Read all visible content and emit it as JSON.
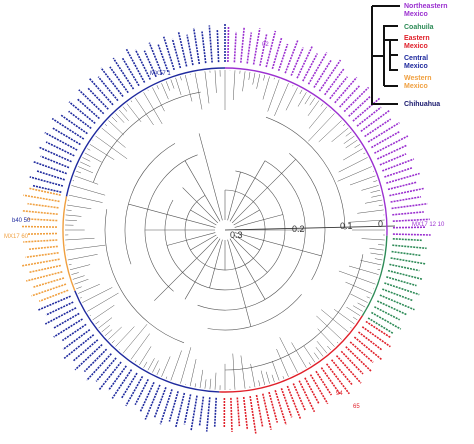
{
  "legend": {
    "groups": [
      {
        "name": "Northeastern",
        "name2": "Mexico",
        "color": "#9b30d0"
      },
      {
        "name": "Coahuila",
        "name2": "",
        "color": "#2e8b57"
      },
      {
        "name": "Eastern",
        "name2": "Mexico",
        "color": "#e0202a"
      },
      {
        "name": "Central",
        "name2": "Mexico",
        "color": "#1f2a9e"
      },
      {
        "name": "Western",
        "name2": "Mexico",
        "color": "#f0a040"
      },
      {
        "name": "Chihuahua",
        "name2": "",
        "color": "#1a1a6e"
      }
    ]
  },
  "scale": {
    "ticks": [
      "0.3",
      "0.2",
      "0.1",
      "0"
    ]
  },
  "leaf_labels": {
    "northeastern": [
      "02",
      "1b",
      "MX"
    ],
    "eastern": [
      "65",
      "94",
      "MX"
    ],
    "western": [
      "MX17 60",
      "MX17"
    ],
    "central": [
      "MX17 1",
      "b40 50",
      "3a"
    ],
    "misc": [
      "MX17 12 10"
    ]
  },
  "colors": {
    "tree": "#555555",
    "northeastern": "#9b30d0",
    "coahuila": "#2e8b57",
    "eastern": "#e0202a",
    "central": "#1f2a9e",
    "western": "#f0a040",
    "chihuahua": "#1a1a6e"
  }
}
